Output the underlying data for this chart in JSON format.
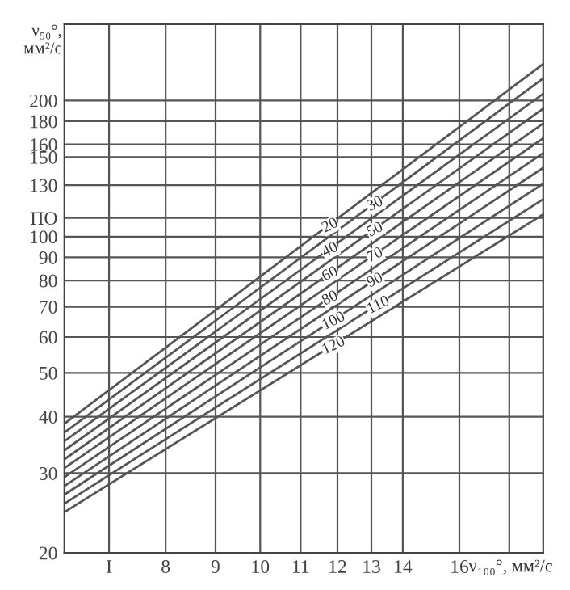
{
  "chart_data": {
    "type": "line",
    "xlabel": "ν₁₀₀°, мм²/с",
    "ylabel": "ν₅₀°,\nмм²/с",
    "log": "xy",
    "grid": true,
    "marker": "none",
    "line_style": "solid",
    "xlim": [
      6.3,
      19.5
    ],
    "xticks": [
      {
        "value": 7,
        "label": "I"
      },
      8,
      9,
      10,
      11,
      12,
      13,
      14,
      16,
      {
        "value": 18,
        "label": null
      }
    ],
    "ylim": [
      20,
      295
    ],
    "yticks": [
      20,
      30,
      40,
      50,
      60,
      70,
      80,
      90,
      100,
      {
        "value": 110,
        "label": "ПО"
      },
      130,
      150,
      160,
      180,
      200
    ],
    "x": [
      6.3,
      19.5
    ],
    "series": [
      {
        "name": "20",
        "color": "#555555",
        "values": [
          38.6,
          241
        ]
      },
      {
        "name": "30",
        "color": "#555555",
        "values": [
          36.9,
          224
        ]
      },
      {
        "name": "40",
        "color": "#555555",
        "values": [
          35.3,
          207
        ]
      },
      {
        "name": "50",
        "color": "#555555",
        "values": [
          33.7,
          192
        ]
      },
      {
        "name": "60",
        "color": "#555555",
        "values": [
          32.2,
          178
        ]
      },
      {
        "name": "70",
        "color": "#555555",
        "values": [
          30.8,
          165
        ]
      },
      {
        "name": "80",
        "color": "#555555",
        "values": [
          29.4,
          153
        ]
      },
      {
        "name": "90",
        "color": "#555555",
        "values": [
          28.1,
          142
        ]
      },
      {
        "name": "100",
        "color": "#555555",
        "values": [
          26.9,
          131
        ]
      },
      {
        "name": "110",
        "color": "#555555",
        "values": [
          25.7,
          121
        ]
      },
      {
        "name": "120",
        "color": "#555555",
        "values": [
          24.6,
          112
        ]
      }
    ]
  }
}
